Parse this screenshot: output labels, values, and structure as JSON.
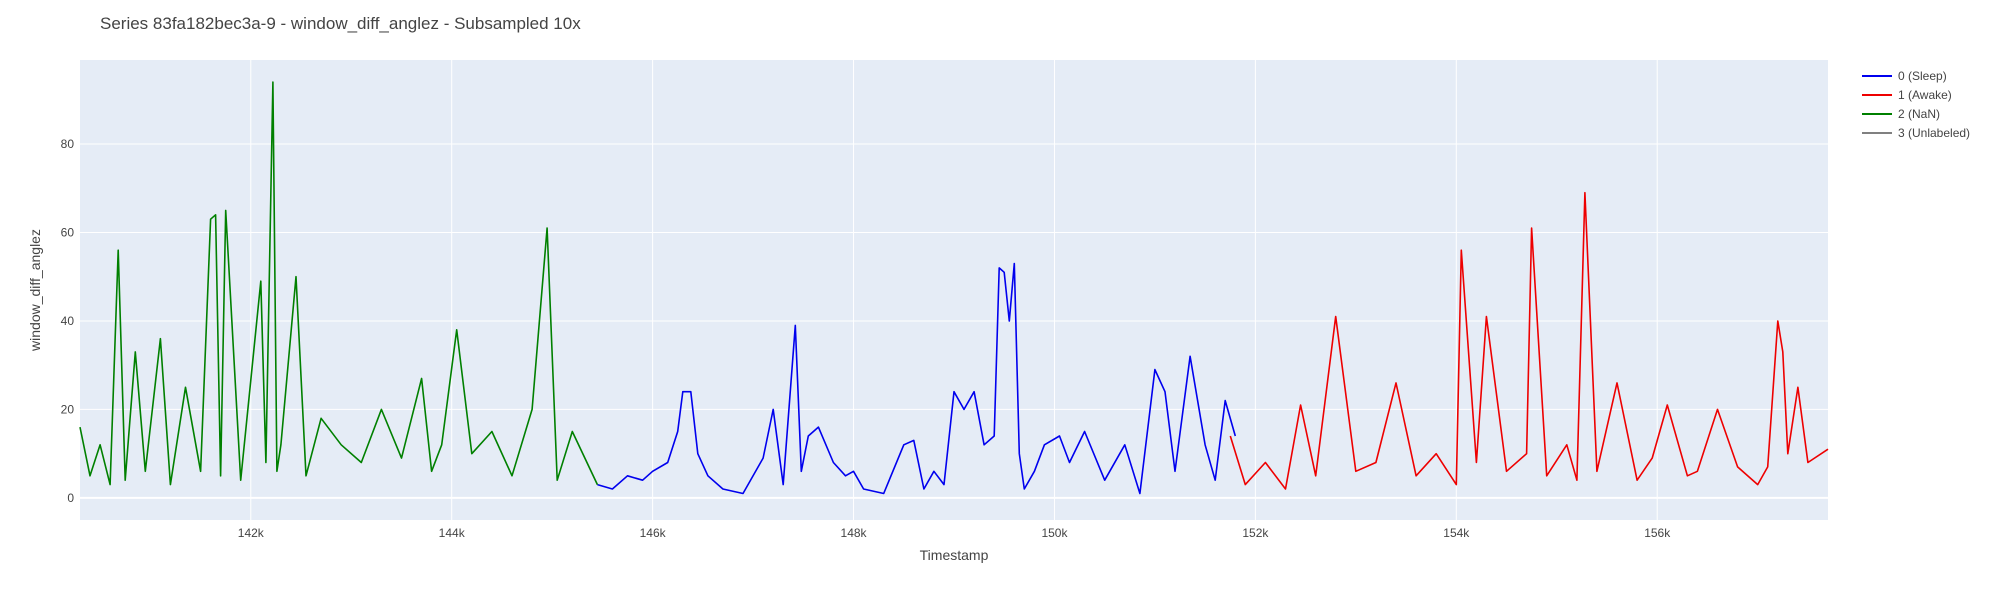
{
  "chart_data": {
    "type": "line",
    "title": "Series 83fa182bec3a-9 - window_diff_anglez - Subsampled 10x",
    "xlabel": "Timestamp",
    "ylabel": "window_diff_anglez",
    "xlim": [
      140300,
      157700
    ],
    "ylim": [
      -5,
      99
    ],
    "x_ticks": [
      142000,
      144000,
      146000,
      148000,
      150000,
      152000,
      154000,
      156000
    ],
    "x_tick_labels": [
      "142k",
      "144k",
      "146k",
      "148k",
      "150k",
      "152k",
      "154k",
      "156k"
    ],
    "y_ticks": [
      0,
      20,
      40,
      60,
      80
    ],
    "y_tick_labels": [
      "0",
      "20",
      "40",
      "60",
      "80"
    ],
    "grid": true,
    "legend_position": "top-right",
    "series": [
      {
        "name": "0 (Sleep)",
        "color": "#0000ee",
        "x": [
          145450,
          145600,
          145750,
          145900,
          146000,
          146150,
          146250,
          146300,
          146380,
          146450,
          146550,
          146700,
          146900,
          147100,
          147200,
          147300,
          147420,
          147480,
          147550,
          147650,
          147800,
          147920,
          148000,
          148100,
          148300,
          148500,
          148600,
          148700,
          148800,
          148900,
          149000,
          149100,
          149200,
          149300,
          149400,
          149450,
          149500,
          149550,
          149600,
          149650,
          149700,
          149800,
          149900,
          150050,
          150150,
          150300,
          150500,
          150700,
          150850,
          151000,
          151100,
          151200,
          151350,
          151500,
          151600,
          151700,
          151800
        ],
        "y": [
          3,
          2,
          5,
          4,
          6,
          8,
          15,
          24,
          24,
          10,
          5,
          2,
          1,
          9,
          20,
          3,
          39,
          6,
          14,
          16,
          8,
          5,
          6,
          2,
          1,
          12,
          13,
          2,
          6,
          3,
          24,
          20,
          24,
          12,
          14,
          52,
          51,
          40,
          53,
          10,
          2,
          6,
          12,
          14,
          8,
          15,
          4,
          12,
          1,
          29,
          24,
          6,
          32,
          12,
          4,
          22,
          14
        ]
      },
      {
        "name": "1 (Awake)",
        "color": "#ee0000",
        "x": [
          151750,
          151900,
          152100,
          152300,
          152450,
          152600,
          152800,
          153000,
          153200,
          153400,
          153600,
          153800,
          154000,
          154050,
          154200,
          154300,
          154500,
          154700,
          154750,
          154900,
          155100,
          155200,
          155280,
          155400,
          155600,
          155800,
          155950,
          156100,
          156300,
          156400,
          156600,
          156800,
          157000,
          157100,
          157200,
          157250,
          157300,
          157400,
          157500,
          157700
        ],
        "y": [
          14,
          3,
          8,
          2,
          21,
          5,
          41,
          6,
          8,
          26,
          5,
          10,
          3,
          56,
          8,
          41,
          6,
          10,
          61,
          5,
          12,
          4,
          69,
          6,
          26,
          4,
          9,
          21,
          5,
          6,
          20,
          7,
          3,
          7,
          40,
          33,
          10,
          25,
          8,
          11
        ]
      },
      {
        "name": "2 (NaN)",
        "color": "#008000",
        "x": [
          140300,
          140400,
          140500,
          140600,
          140680,
          140750,
          140850,
          140950,
          141100,
          141200,
          141350,
          141500,
          141600,
          141650,
          141700,
          141750,
          141900,
          142100,
          142150,
          142220,
          142260,
          142300,
          142450,
          142550,
          142700,
          142900,
          143100,
          143300,
          143500,
          143700,
          143800,
          143900,
          144050,
          144200,
          144400,
          144600,
          144800,
          144950,
          145050,
          145200,
          145450
        ],
        "y": [
          16,
          5,
          12,
          3,
          56,
          4,
          33,
          6,
          36,
          3,
          25,
          6,
          63,
          64,
          5,
          65,
          4,
          49,
          8,
          94,
          6,
          12,
          50,
          5,
          18,
          12,
          8,
          20,
          9,
          27,
          6,
          12,
          38,
          10,
          15,
          5,
          20,
          61,
          4,
          15,
          3
        ]
      },
      {
        "name": "3 (Unlabeled)",
        "color": "#808080",
        "x": [],
        "y": []
      }
    ]
  }
}
